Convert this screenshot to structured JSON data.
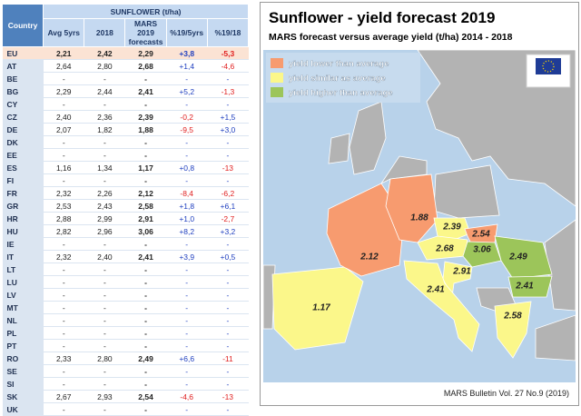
{
  "table": {
    "title": "SUNFLOWER (t/ha)",
    "columns": [
      "Country",
      "Avg 5yrs",
      "2018",
      "MARS 2019 forecasts",
      "%19/5yrs",
      "%19/18"
    ],
    "rows": [
      [
        "EU",
        "2,21",
        "2,42",
        "2,29",
        "+3,8",
        "-5,3"
      ],
      [
        "AT",
        "2,64",
        "2,80",
        "2,68",
        "+1,4",
        "-4,6"
      ],
      [
        "BE",
        "-",
        "-",
        "-",
        "-",
        "-"
      ],
      [
        "BG",
        "2,29",
        "2,44",
        "2,41",
        "+5,2",
        "-1,3"
      ],
      [
        "CY",
        "-",
        "-",
        "-",
        "-",
        "-"
      ],
      [
        "CZ",
        "2,40",
        "2,36",
        "2,39",
        "-0,2",
        "+1,5"
      ],
      [
        "DE",
        "2,07",
        "1,82",
        "1,88",
        "-9,5",
        "+3,0"
      ],
      [
        "DK",
        "-",
        "-",
        "-",
        "-",
        "-"
      ],
      [
        "EE",
        "-",
        "-",
        "-",
        "-",
        "-"
      ],
      [
        "ES",
        "1,16",
        "1,34",
        "1,17",
        "+0,8",
        "-13"
      ],
      [
        "FI",
        "-",
        "-",
        "-",
        "-",
        "-"
      ],
      [
        "FR",
        "2,32",
        "2,26",
        "2,12",
        "-8,4",
        "-6,2"
      ],
      [
        "GR",
        "2,53",
        "2,43",
        "2,58",
        "+1,8",
        "+6,1"
      ],
      [
        "HR",
        "2,88",
        "2,99",
        "2,91",
        "+1,0",
        "-2,7"
      ],
      [
        "HU",
        "2,82",
        "2,96",
        "3,06",
        "+8,2",
        "+3,2"
      ],
      [
        "IE",
        "-",
        "-",
        "-",
        "-",
        "-"
      ],
      [
        "IT",
        "2,32",
        "2,40",
        "2,41",
        "+3,9",
        "+0,5"
      ],
      [
        "LT",
        "-",
        "-",
        "-",
        "-",
        "-"
      ],
      [
        "LU",
        "-",
        "-",
        "-",
        "-",
        "-"
      ],
      [
        "LV",
        "-",
        "-",
        "-",
        "-",
        "-"
      ],
      [
        "MT",
        "-",
        "-",
        "-",
        "-",
        "-"
      ],
      [
        "NL",
        "-",
        "-",
        "-",
        "-",
        "-"
      ],
      [
        "PL",
        "-",
        "-",
        "-",
        "-",
        "-"
      ],
      [
        "PT",
        "-",
        "-",
        "-",
        "-",
        "-"
      ],
      [
        "RO",
        "2,33",
        "2,80",
        "2,49",
        "+6,6",
        "-11"
      ],
      [
        "SE",
        "-",
        "-",
        "-",
        "-",
        "-"
      ],
      [
        "SI",
        "-",
        "-",
        "-",
        "-",
        "-"
      ],
      [
        "SK",
        "2,67",
        "2,93",
        "2,54",
        "-4,6",
        "-13"
      ],
      [
        "UK",
        "-",
        "-",
        "-",
        "-",
        "-"
      ]
    ]
  },
  "map": {
    "title": "Sunflower - yield forecast 2019",
    "subtitle": "MARS forecast versus average yield (t/ha) 2014 - 2018",
    "legend": [
      {
        "label": "yield lower than average",
        "color": "#f79b6f",
        "regions": [
          "1.88",
          "2.12",
          "2.54"
        ]
      },
      {
        "label": "yield similar as average",
        "color": "#fbf78a",
        "regions": [
          "2.39",
          "2.68",
          "2.91",
          "2.41",
          "1.17",
          "2.58"
        ]
      },
      {
        "label": "yield higher than average",
        "color": "#9cc55a",
        "regions": [
          "3.06",
          "2.49",
          "2.41"
        ]
      }
    ],
    "footer": "MARS Bulletin Vol. 27 No.9 (2019)"
  }
}
